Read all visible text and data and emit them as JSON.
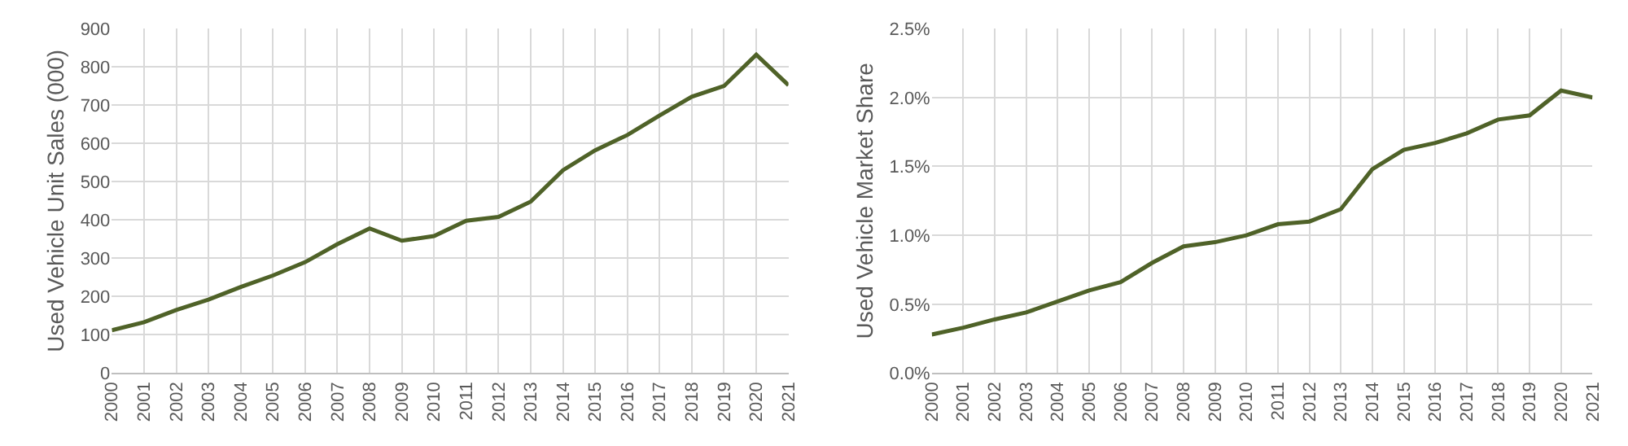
{
  "chart_data": [
    {
      "type": "line",
      "ylabel": "Used Vehicle Unit Sales (000)",
      "categories": [
        "2000",
        "2001",
        "2002",
        "2003",
        "2004",
        "2005",
        "2006",
        "2007",
        "2008",
        "2009",
        "2010",
        "2011",
        "2012",
        "2013",
        "2014",
        "2015",
        "2016",
        "2017",
        "2018",
        "2019",
        "2020",
        "2021"
      ],
      "series": [
        {
          "color": "#4f6228",
          "values": [
            112,
            133,
            165,
            192,
            225,
            255,
            290,
            337,
            378,
            346,
            358,
            398,
            408,
            448,
            530,
            582,
            622,
            673,
            722,
            750,
            832,
            752
          ]
        }
      ],
      "ylim": [
        0,
        900
      ],
      "yticks": [
        0,
        100,
        200,
        300,
        400,
        500,
        600,
        700,
        800,
        900
      ],
      "grid": true,
      "marker": "none",
      "line_style": "solid"
    },
    {
      "type": "line",
      "ylabel": "Used Vehicle Market Share",
      "categories": [
        "2000",
        "2001",
        "2002",
        "2003",
        "2004",
        "2005",
        "2006",
        "2007",
        "2008",
        "2009",
        "2010",
        "2011",
        "2012",
        "2013",
        "2014",
        "2015",
        "2016",
        "2017",
        "2018",
        "2019",
        "2020",
        "2021"
      ],
      "series": [
        {
          "color": "#4f6228",
          "values": [
            0.28,
            0.33,
            0.39,
            0.44,
            0.52,
            0.6,
            0.66,
            0.8,
            0.92,
            0.95,
            1.0,
            1.08,
            1.1,
            1.19,
            1.48,
            1.62,
            1.67,
            1.74,
            1.84,
            1.87,
            2.05,
            2.0
          ]
        }
      ],
      "ylim": [
        0,
        2.5
      ],
      "yticks": [
        {
          "value": 0,
          "label": "0.0%"
        },
        {
          "value": 0.5,
          "label": "0.5%"
        },
        {
          "value": 1.0,
          "label": "1.0%"
        },
        {
          "value": 1.5,
          "label": "1.5%"
        },
        {
          "value": 2.0,
          "label": "2.0%"
        },
        {
          "value": 2.5,
          "label": "2.5%"
        }
      ],
      "grid": true,
      "marker": "none",
      "line_style": "solid"
    }
  ]
}
